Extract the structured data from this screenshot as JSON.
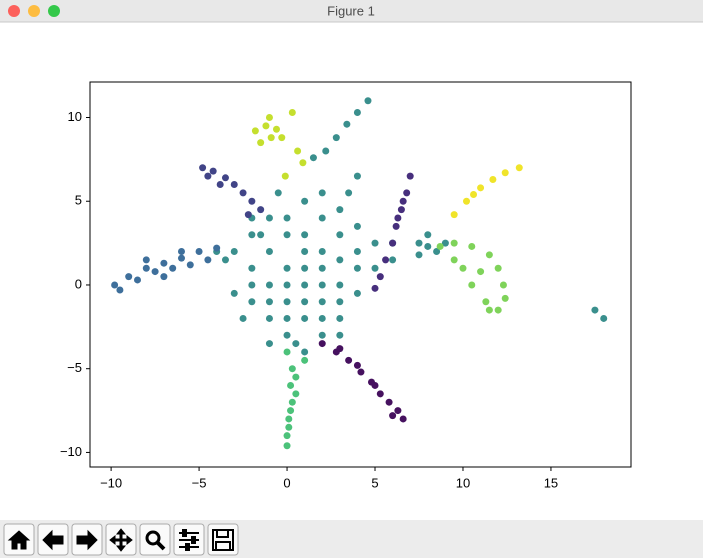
{
  "window": {
    "title": "Figure 1"
  },
  "chart_data": {
    "type": "scatter",
    "xlim": [
      -11.2,
      19.55
    ],
    "ylim": [
      -10.87,
      12.12
    ],
    "xticks": [
      {
        "value": -10,
        "label": "−10"
      },
      {
        "value": -5,
        "label": "−5"
      },
      0,
      5,
      10,
      15
    ],
    "yticks": [
      {
        "value": -10,
        "label": "−10"
      },
      {
        "value": -5,
        "label": "−5"
      },
      0,
      5,
      10
    ],
    "series": [
      {
        "color": "#3a8f8d",
        "x": [
          -3,
          -2,
          -1,
          0,
          1,
          2,
          3,
          2,
          1,
          0,
          -1,
          -2,
          0,
          1,
          2,
          3,
          4,
          4,
          3,
          2,
          1,
          2,
          0,
          -1,
          -2,
          -1,
          0,
          -1,
          1,
          2,
          3,
          4,
          5,
          5,
          4,
          3,
          -3,
          -3.5,
          -4,
          -2.5,
          0,
          1,
          2,
          3,
          1,
          -1,
          0,
          2,
          1,
          -2,
          3,
          6,
          -0.5,
          3.5,
          4,
          -1.5,
          0.5,
          -2,
          6,
          7.5,
          8,
          8.5,
          9,
          8,
          7.5,
          17.5,
          18,
          1.5,
          2.2,
          2.8,
          3.4,
          4,
          4.6
        ],
        "values": [
          2,
          1,
          0,
          -1,
          -2,
          -3,
          -2,
          -1,
          0,
          1,
          2,
          3,
          3,
          2,
          1,
          0,
          1,
          2,
          3,
          4,
          5,
          5.5,
          4,
          4,
          -1,
          -2,
          -3,
          -3.5,
          -4,
          -2,
          -1,
          -0.5,
          1,
          2.5,
          3.5,
          4.5,
          -0.5,
          1.5,
          2,
          -2,
          -2,
          1,
          2,
          1.5,
          3,
          -1,
          0,
          0,
          -1,
          0,
          -3,
          2.5,
          5.5,
          5.5,
          6.5,
          3,
          -3.5,
          4,
          1.5,
          2.5,
          2.3,
          2,
          2.5,
          3,
          1.8,
          -1.5,
          -2,
          7.6,
          8,
          8.8,
          9.6,
          10.3,
          11
        ]
      },
      {
        "color": "#3e6f9b",
        "x": [
          -9.8,
          -9,
          -8,
          -7,
          -6,
          -5,
          -4,
          -9.5,
          -8.5,
          -7.5,
          -6.5,
          -5.5,
          -4.5,
          -8,
          -6,
          -7
        ],
        "values": [
          0,
          0.5,
          1,
          1.3,
          1.6,
          2,
          2.2,
          -0.3,
          0.3,
          0.8,
          1,
          1.2,
          1.5,
          1.5,
          2,
          0.5
        ]
      },
      {
        "color": "#414487",
        "x": [
          -4.8,
          -4.2,
          -3.5,
          -3,
          -2.5,
          -2,
          -4.5,
          -3.8,
          -1.5,
          -2.2
        ],
        "values": [
          7,
          6.8,
          6.4,
          6,
          5.5,
          5,
          6.5,
          6,
          4.5,
          4.2
        ]
      },
      {
        "color": "#472f7d",
        "x": [
          7,
          6.8,
          6.5,
          6.2,
          6,
          5.6,
          5.3,
          5,
          6.6,
          6.3
        ],
        "values": [
          6.5,
          5.5,
          4.5,
          3.5,
          2.5,
          1.5,
          0.5,
          -0.2,
          5,
          4
        ]
      },
      {
        "color": "#46115f",
        "x": [
          2,
          2.8,
          3.5,
          4.2,
          4.8,
          5.3,
          5.8,
          6.3,
          6.6,
          3,
          4,
          5,
          6
        ],
        "values": [
          -3.5,
          -4,
          -4.5,
          -5.2,
          -5.8,
          -6.5,
          -7,
          -7.5,
          -8,
          -3.8,
          -4.8,
          -6,
          -7.8
        ]
      },
      {
        "color": "#4cc27a",
        "x": [
          0,
          0.3,
          0.5,
          0.2,
          0.5,
          0.3,
          0.2,
          0.1,
          0.1,
          0,
          0,
          1
        ],
        "values": [
          -4,
          -5,
          -5.5,
          -6,
          -6.5,
          -7,
          -7.5,
          -8,
          -8.5,
          -9,
          -9.6,
          -4.5
        ]
      },
      {
        "color": "#7fd35a",
        "x": [
          8.7,
          9.5,
          10.5,
          11.5,
          12,
          12.3,
          12.4,
          12,
          11.3,
          10.5,
          10,
          9.5,
          11,
          11.5
        ],
        "values": [
          2.3,
          2.5,
          2.3,
          1.8,
          1,
          0,
          -0.8,
          -1.5,
          -1,
          0,
          1,
          1.5,
          0.8,
          -1.5
        ]
      },
      {
        "color": "#f0e42a",
        "x": [
          9.5,
          10.2,
          11,
          11.7,
          12.4,
          13.2,
          10.6
        ],
        "values": [
          4.2,
          5,
          5.8,
          6.3,
          6.7,
          7,
          5.4
        ]
      },
      {
        "color": "#c5df2e",
        "x": [
          -1.8,
          -1.2,
          -0.6,
          -0.3,
          -1.5,
          -0.9,
          0.3,
          0.6,
          0.9,
          -0.1,
          -1
        ],
        "values": [
          9.2,
          9.5,
          9.3,
          8.8,
          8.5,
          8.8,
          10.3,
          8,
          7.3,
          6.5,
          10
        ]
      }
    ]
  }
}
